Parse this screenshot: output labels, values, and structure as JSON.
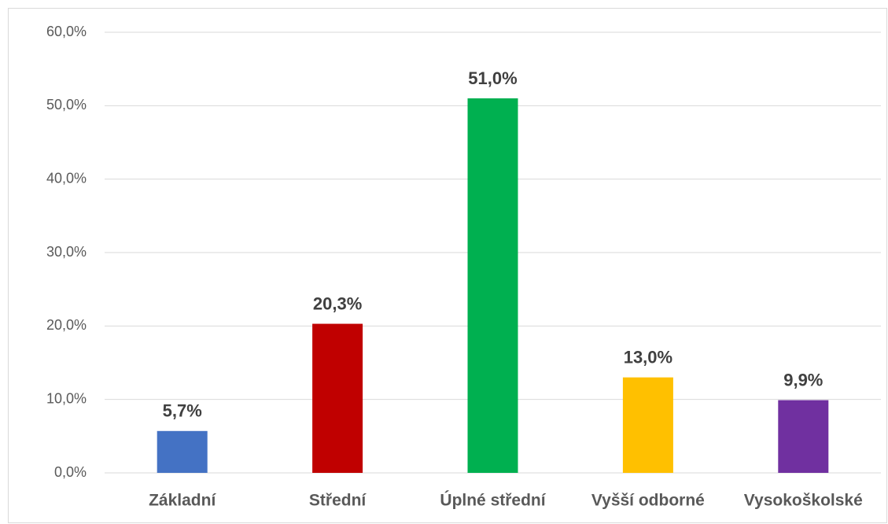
{
  "chart_data": {
    "type": "bar",
    "categories": [
      "Základní",
      "Střední",
      "Úplné střední",
      "Vyšší odborné",
      "Vysokoškolské"
    ],
    "values": [
      5.7,
      20.3,
      51.0,
      13.0,
      9.9
    ],
    "value_labels": [
      "5,7%",
      "20,3%",
      "51,0%",
      "13,0%",
      "9,9%"
    ],
    "colors": [
      "#4472c4",
      "#c00000",
      "#00b050",
      "#ffc000",
      "#7030a0"
    ],
    "ylim": [
      0,
      60
    ],
    "yticks": [
      {
        "value": 0,
        "label": "0,0%"
      },
      {
        "value": 10,
        "label": "10,0%"
      },
      {
        "value": 20,
        "label": "20,0%"
      },
      {
        "value": 30,
        "label": "30,0%"
      },
      {
        "value": 40,
        "label": "40,0%"
      },
      {
        "value": 50,
        "label": "50,0%"
      },
      {
        "value": 60,
        "label": "60,0%"
      }
    ],
    "grid": true
  }
}
